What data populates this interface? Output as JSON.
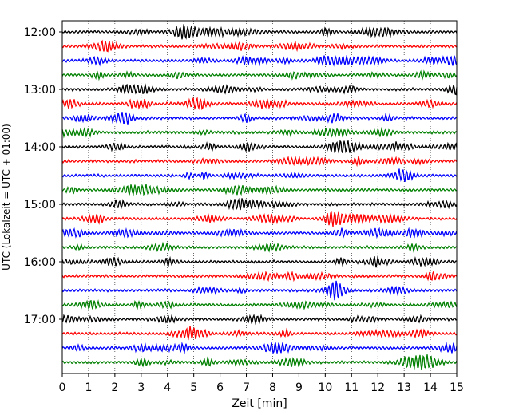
{
  "chart_data": {
    "type": "line",
    "xlabel": "Zeit  [min]",
    "ylabel": "UTC (Lokalzeit = UTC + 01:00)",
    "xlim": [
      0,
      15
    ],
    "x_ticks": [
      "0",
      "1",
      "2",
      "3",
      "4",
      "5",
      "6",
      "7",
      "8",
      "9",
      "10",
      "11",
      "12",
      "13",
      "14",
      "15"
    ],
    "y_ticks": [
      "12:00",
      "13:00",
      "14:00",
      "15:00",
      "16:00",
      "17:00"
    ],
    "grid": "vertical dotted",
    "trace_count": 24,
    "trace_interval_min": 15,
    "first_trace": "12:00",
    "color_cycle": [
      "#000000",
      "#ff0000",
      "#0000ff",
      "#008000"
    ]
  }
}
